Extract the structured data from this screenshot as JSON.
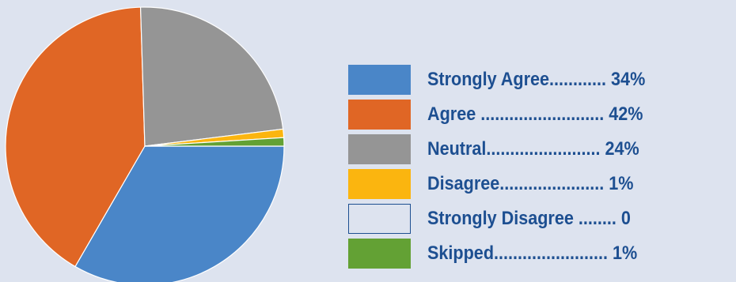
{
  "chart_data": {
    "type": "pie",
    "title": "",
    "legend_position": "right",
    "slices": [
      {
        "label": "Strongly Agree",
        "value": 34,
        "display": "Strongly Agree............ 34%",
        "color": "#4a86c8",
        "outline": false
      },
      {
        "label": "Agree",
        "value": 42,
        "display": "Agree .......................... 42%",
        "color": "#e06625",
        "outline": false
      },
      {
        "label": "Neutral",
        "value": 24,
        "display": "Neutral........................ 24%",
        "color": "#959595",
        "outline": false
      },
      {
        "label": "Disagree",
        "value": 1,
        "display": "Disagree...................... 1%",
        "color": "#fbb50f",
        "outline": false
      },
      {
        "label": "Strongly Disagree",
        "value": 0,
        "display": "Strongly Disagree ........ 0",
        "color": "#dde3ef",
        "outline": true
      },
      {
        "label": "Skipped",
        "value": 1,
        "display": "Skipped........................ 1%",
        "color": "#63a134",
        "outline": false
      }
    ]
  }
}
